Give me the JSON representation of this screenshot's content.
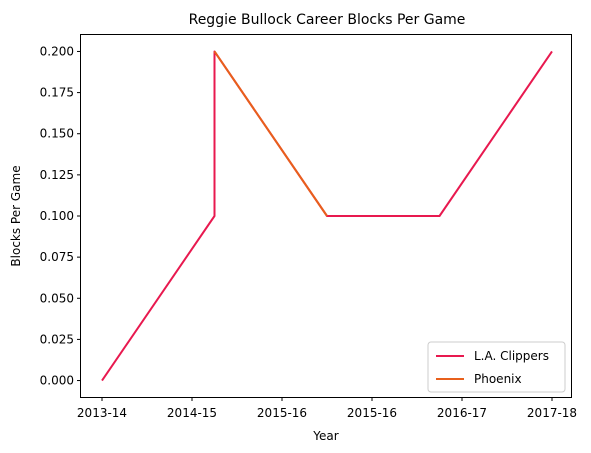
{
  "chart_data": {
    "type": "line",
    "title": "Reggie Bullock Career Blocks Per Game",
    "xlabel": "Year",
    "ylabel": "Blocks Per Game",
    "x_tick_labels": [
      "2013-14",
      "2014-15",
      "2015-16",
      "2015-16",
      "2016-17",
      "2017-18"
    ],
    "y_ticks": [
      "0.000",
      "0.025",
      "0.050",
      "0.075",
      "0.100",
      "0.125",
      "0.150",
      "0.175",
      "0.200"
    ],
    "ylim": [
      -0.01,
      0.21
    ],
    "grid": false,
    "legend_position": "lower-right",
    "series": [
      {
        "name": "L.A. Clippers",
        "color": "#e8194f",
        "points": [
          {
            "x": 0,
            "y": 0.0
          },
          {
            "x": 1,
            "y": 0.1
          },
          {
            "x": 1,
            "y": 0.2
          },
          {
            "x": 2,
            "y": 0.1
          },
          {
            "x": 3,
            "y": 0.1
          },
          {
            "x": 4,
            "y": 0.2
          }
        ]
      },
      {
        "name": "Phoenix",
        "color": "#e8601c",
        "points": [
          {
            "x": 1,
            "y": 0.2
          },
          {
            "x": 2,
            "y": 0.1
          }
        ]
      }
    ]
  }
}
